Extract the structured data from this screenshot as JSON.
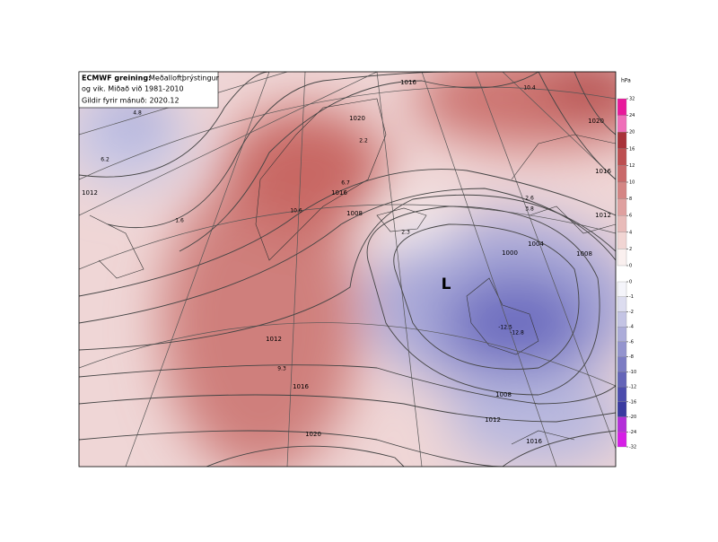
{
  "header": {
    "title_bold": "ECMWF greining:",
    "title_rest": "Meðalloftþrýstingur",
    "line2": "og vik. Miðað við 1981-2010",
    "line3": "Gildir fyrir mánuð: 2020.12"
  },
  "low_label": "L",
  "contour_labels": [
    "1016",
    "1020",
    "1016",
    "1008",
    "1012",
    "1000",
    "1004",
    "1008",
    "1012",
    "1016",
    "1020",
    "1008",
    "1012",
    "1016",
    "1020",
    "1016",
    "1012"
  ],
  "anomaly_labels": [
    "4.8",
    "6.2",
    "1.6",
    "10.6",
    "2.2",
    "6.7",
    "2.3",
    "9.3",
    "-12.5",
    "-12.8",
    "10.4",
    "2.6",
    "3.8"
  ],
  "colorbar": {
    "unit": "hPa",
    "positive": {
      "ticks": [
        32,
        24,
        20,
        16,
        12,
        10,
        8,
        6,
        4,
        2,
        0
      ],
      "colors": [
        "#e8199b",
        "#ef6fb9",
        "#a8323a",
        "#bd4f51",
        "#c9696a",
        "#d48584",
        "#dfa09f",
        "#e8bbb9",
        "#f1d5d3",
        "#faf0ef"
      ]
    },
    "negative": {
      "ticks": [
        0,
        -1,
        -2,
        -4,
        -6,
        -8,
        -10,
        -12,
        -16,
        -20,
        -24,
        -32
      ],
      "colors": [
        "#f4f4fa",
        "#dcdcef",
        "#c4c4e4",
        "#acacd9",
        "#9494ce",
        "#7c7cc3",
        "#6464b8",
        "#4c4cad",
        "#3a3aa0",
        "#b32fd8",
        "#d61ee6"
      ]
    }
  }
}
